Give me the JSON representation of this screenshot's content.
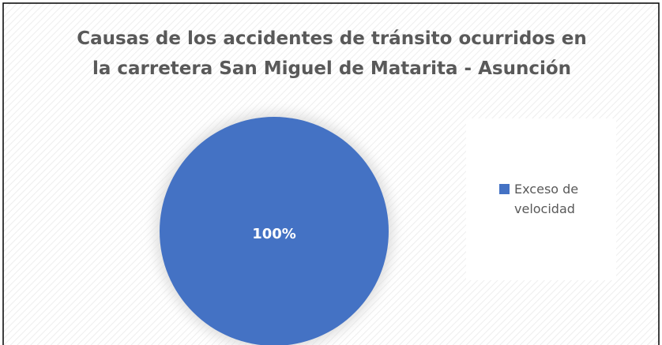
{
  "chart_data": {
    "type": "pie",
    "title": "Causas de los accidentes de tránsito ocurridos en la carretera San Miguel de Matarita - Asunción",
    "categories": [
      "Exceso de velocidad"
    ],
    "values": [
      100
    ],
    "value_labels": [
      "100%"
    ],
    "colors": [
      "#4472c4"
    ],
    "legend": "right"
  }
}
